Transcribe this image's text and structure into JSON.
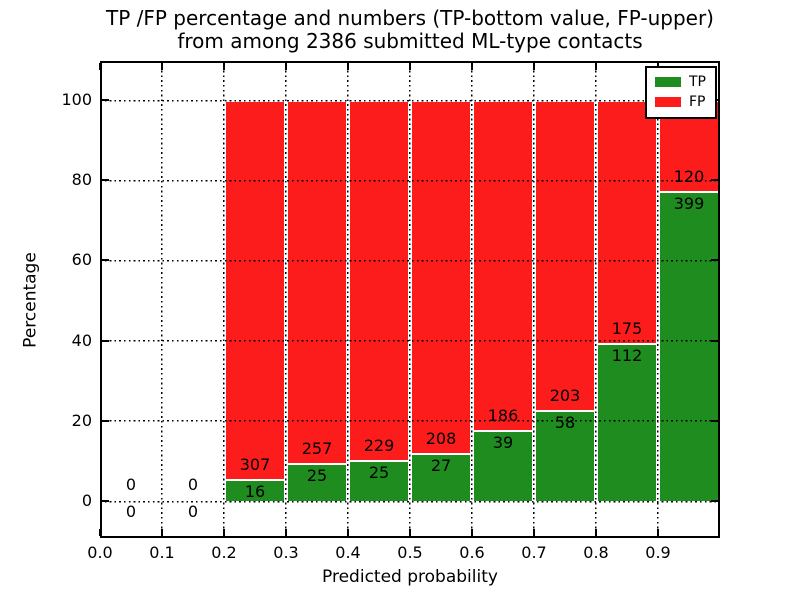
{
  "title": {
    "line1": "TP /FP percentage and numbers (TP-bottom value, FP-upper)",
    "line2": "from among 2386 submitted ML-type contacts"
  },
  "axes": {
    "xlabel": "Predicted probability",
    "ylabel": "Percentage",
    "xtick_labels": [
      "0.0",
      "0.1",
      "0.2",
      "0.3",
      "0.4",
      "0.5",
      "0.6",
      "0.7",
      "0.8",
      "0.9"
    ],
    "ytick_labels": [
      "0",
      "20",
      "40",
      "60",
      "80",
      "100"
    ]
  },
  "legend": {
    "entries": [
      {
        "label": "TP",
        "color": "#1E8C1E"
      },
      {
        "label": "FP",
        "color": "#FC1C1C"
      }
    ]
  },
  "chart_data": {
    "type": "bar",
    "subtype": "stacked-percentage",
    "title": "TP /FP percentage and numbers (TP-bottom value, FP-upper) from among 2386 submitted ML-type contacts",
    "xlabel": "Predicted probability",
    "ylabel": "Percentage",
    "xlim": [
      0.0,
      1.0
    ],
    "ylim": [
      -9,
      110
    ],
    "xticks": [
      0.0,
      0.1,
      0.2,
      0.3,
      0.4,
      0.5,
      0.6,
      0.7,
      0.8,
      0.9
    ],
    "yticks": [
      0,
      20,
      40,
      60,
      80,
      100
    ],
    "grid": "dotted",
    "legend_position": "upper right",
    "total_contacts": 2386,
    "bin_width": 0.1,
    "series_names": [
      "TP",
      "FP"
    ],
    "colors": {
      "TP": "#1E8C1E",
      "FP": "#FC1C1C"
    },
    "bins": [
      {
        "x_start": 0.0,
        "tp_count": 0,
        "fp_count": 0,
        "tp_pct": 0.0,
        "fp_pct": 0.0
      },
      {
        "x_start": 0.1,
        "tp_count": 0,
        "fp_count": 0,
        "tp_pct": 0.0,
        "fp_pct": 0.0
      },
      {
        "x_start": 0.2,
        "tp_count": 16,
        "fp_count": 307,
        "tp_pct": 4.95,
        "fp_pct": 95.05
      },
      {
        "x_start": 0.3,
        "tp_count": 25,
        "fp_count": 257,
        "tp_pct": 8.87,
        "fp_pct": 91.13
      },
      {
        "x_start": 0.4,
        "tp_count": 25,
        "fp_count": 229,
        "tp_pct": 9.84,
        "fp_pct": 90.16
      },
      {
        "x_start": 0.5,
        "tp_count": 27,
        "fp_count": 208,
        "tp_pct": 11.49,
        "fp_pct": 88.51
      },
      {
        "x_start": 0.6,
        "tp_count": 39,
        "fp_count": 186,
        "tp_pct": 17.33,
        "fp_pct": 82.67
      },
      {
        "x_start": 0.7,
        "tp_count": 58,
        "fp_count": 203,
        "tp_pct": 22.22,
        "fp_pct": 77.78
      },
      {
        "x_start": 0.8,
        "tp_count": 112,
        "fp_count": 175,
        "tp_pct": 39.02,
        "fp_pct": 60.98
      },
      {
        "x_start": 0.9,
        "tp_count": 399,
        "fp_count": 120,
        "tp_pct": 76.88,
        "fp_pct": 23.12
      }
    ]
  }
}
